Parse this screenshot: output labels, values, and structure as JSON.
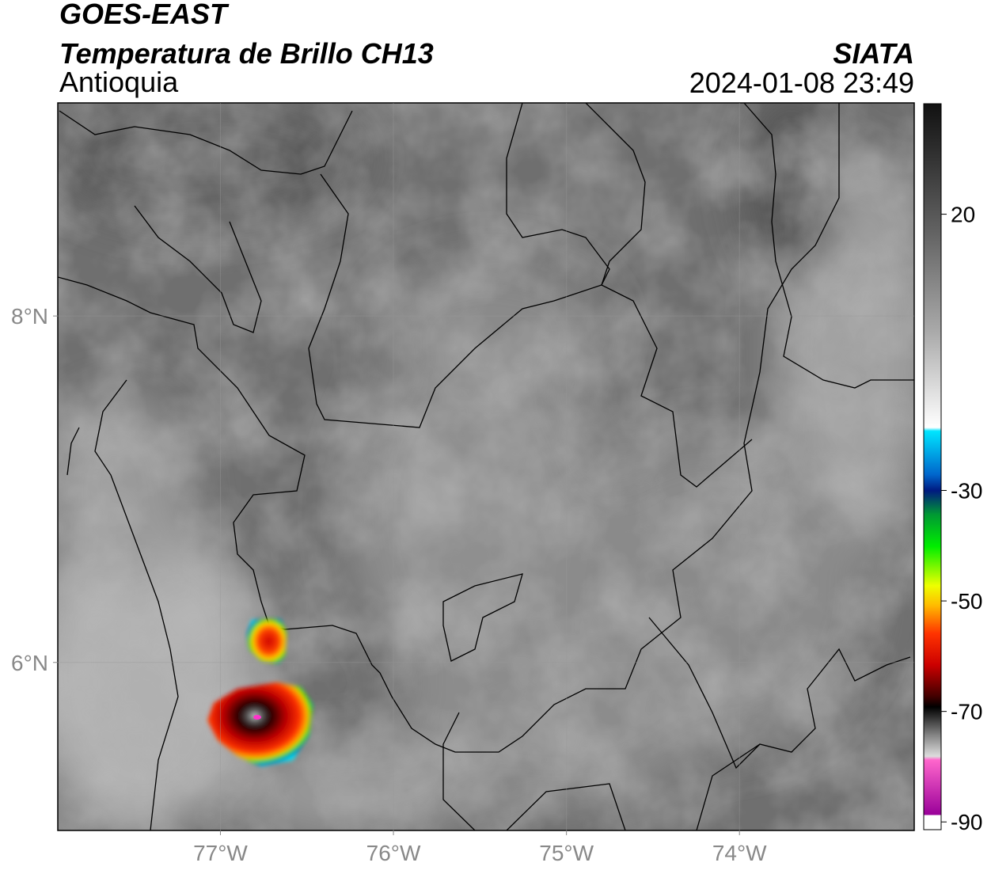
{
  "header": {
    "title": "GOES-EAST",
    "subtitle": "Temperatura de Brillo CH13",
    "region": "Antioquia",
    "source": "SIATA",
    "timestamp": "2024-01-08 23:49"
  },
  "map": {
    "xlim": [
      -77.94,
      -72.99
    ],
    "ylim": [
      5.03,
      9.23
    ],
    "xticks": [
      {
        "value": -77,
        "label": "77°W"
      },
      {
        "value": -76,
        "label": "76°W"
      },
      {
        "value": -75,
        "label": "75°W"
      },
      {
        "value": -74,
        "label": "74°W"
      }
    ],
    "yticks": [
      {
        "value": 8,
        "label": "8°N"
      },
      {
        "value": 6,
        "label": "6°N"
      }
    ],
    "grid": true
  },
  "colorbar": {
    "lim": [
      -91.4,
      40
    ],
    "ticks": [
      20,
      -30,
      -50,
      -70,
      -90
    ]
  }
}
